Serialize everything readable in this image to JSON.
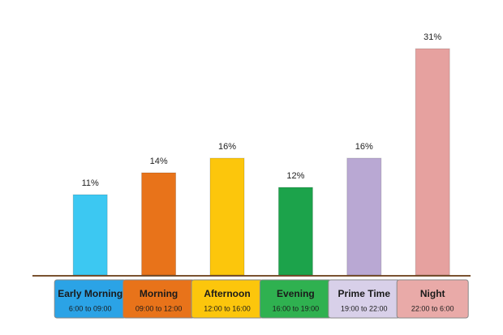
{
  "chart_data": {
    "type": "bar",
    "categories": [
      "Early Morning",
      "Morning",
      "Afternoon",
      "Evening",
      "Prime Time",
      "Night"
    ],
    "time_ranges": [
      "6:00 to 09:00",
      "09:00 to 12:00",
      "12:00 to 16:00",
      "16:00 to 19:00",
      "19:00 to 22:00",
      "22:00 to 6:00"
    ],
    "values": [
      11,
      14,
      16,
      12,
      16,
      31
    ],
    "value_labels": [
      "11%",
      "14%",
      "16%",
      "12%",
      "16%",
      "31%"
    ],
    "colors": [
      "#3cc8f2",
      "#e8731a",
      "#fcc60c",
      "#1ca34b",
      "#b9a8d3",
      "#e6a19f"
    ],
    "label_colors": [
      "#2ba3e6",
      "#e8731a",
      "#fcc60c",
      "#2fb150",
      "#d8d0e9",
      "#e9aaa8"
    ]
  }
}
